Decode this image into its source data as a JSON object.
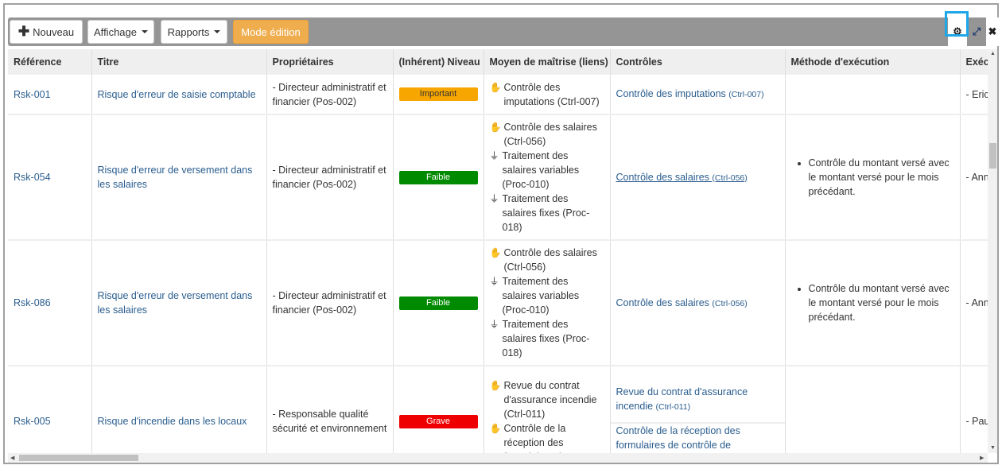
{
  "toolbar": {
    "new_label": "Nouveau",
    "display_label": "Affichage",
    "reports_label": "Rapports",
    "edit_mode_label": "Mode édition",
    "icons": [
      "plus-icon",
      "gear-icon",
      "expand-icon",
      "close-icon"
    ]
  },
  "colors": {
    "important": "#f7a600",
    "faible": "#008a00",
    "grave": "#ee0000",
    "edit_mode": "#f0ad4e",
    "highlight": "#1ea7e8"
  },
  "columns": [
    "Référence",
    "Titre",
    "Propriétaires",
    "(Inhérent) Niveau",
    "Moyen de maîtrise (liens)",
    "Contrôles",
    "Méthode d'exécution",
    "Exéc"
  ],
  "rows": [
    {
      "ref": "Rsk-001",
      "title": "Risque d'erreur de saisie comptable",
      "owner": "- Directeur administratif et financier (Pos-002)",
      "level": "Important",
      "level_color": "important",
      "means": [
        {
          "icon": "control",
          "text": "Contrôle des imputations (Ctrl-007)"
        }
      ],
      "controls": [
        {
          "name": "Contrôle des imputations",
          "id": "(Ctrl-007)",
          "underline": false
        }
      ],
      "method": "",
      "exec": "- Eric"
    },
    {
      "ref": "Rsk-054",
      "title": "Risque d'erreur de versement dans les salaires",
      "owner": "- Directeur administratif et financier (Pos-002)",
      "level": "Faible",
      "level_color": "faible",
      "means": [
        {
          "icon": "control",
          "text": "Contrôle des salaires (Ctrl-056)"
        },
        {
          "icon": "process",
          "text": "Traitement des salaires variables (Proc-010)"
        },
        {
          "icon": "process",
          "text": "Traitement des salaires fixes (Proc-018)"
        }
      ],
      "controls": [
        {
          "name": "Contrôle des salaires",
          "id": "(Ctrl-056)",
          "underline": true
        }
      ],
      "method": "Contrôle du montant versé avec le montant versé pour le mois précédant.",
      "exec": "- Ann"
    },
    {
      "ref": "Rsk-086",
      "title": "Risque d'erreur de versement dans les salaires",
      "owner": "- Directeur administratif et financier (Pos-002)",
      "level": "Faible",
      "level_color": "faible",
      "means": [
        {
          "icon": "control",
          "text": "Contrôle des salaires (Ctrl-056)"
        },
        {
          "icon": "process",
          "text": "Traitement des salaires variables (Proc-010)"
        },
        {
          "icon": "process",
          "text": "Traitement des salaires fixes (Proc-018)"
        }
      ],
      "controls": [
        {
          "name": "Contrôle des salaires",
          "id": "(Ctrl-056)",
          "underline": false
        }
      ],
      "method": "Contrôle du montant versé avec le montant versé pour le mois précédant.",
      "exec": "- Ann"
    },
    {
      "ref": "Rsk-005",
      "title": "Risque d'incendie dans les locaux",
      "owner": "- Responsable qualité sécurité et environnement",
      "level": "Grave",
      "level_color": "grave",
      "means": [
        {
          "icon": "control",
          "text": "Revue du contrat d'assurance incendie (Ctrl-011)"
        },
        {
          "icon": "control",
          "text": "Contrôle de la réception des formulaires de"
        }
      ],
      "controls": [
        {
          "name": "Revue du contrat d'assurance incendie",
          "id": "(Ctrl-011)",
          "underline": false
        },
        {
          "name": "Contrôle de la réception des formulaires de contrôle de prévention",
          "id": "",
          "underline": false
        }
      ],
      "method": "",
      "exec": "- Pau"
    }
  ]
}
